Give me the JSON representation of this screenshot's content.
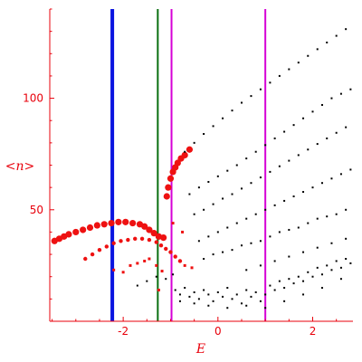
{
  "colors": {
    "axis": "#e8000b",
    "background": "#ffffff",
    "black_points": "#000000",
    "red_points": "#ee1111"
  },
  "chart_data": {
    "type": "scatter",
    "title": "",
    "xlabel": "E",
    "ylabel": "<n>",
    "xlim": [
      -3.55,
      2.85
    ],
    "ylim": [
      0,
      140
    ],
    "xticks": [
      -2,
      0,
      2
    ],
    "yticks": [
      50,
      100
    ],
    "xtick_labels": [
      "-2",
      "0",
      "2"
    ],
    "ytick_labels": [
      "50",
      "100"
    ],
    "grid": false,
    "vertical_lines": [
      {
        "x": -2.23,
        "color": "#0a14e0"
      },
      {
        "x": -1.27,
        "color": "#0a6f10"
      },
      {
        "x": -0.98,
        "color": "#d600d6"
      },
      {
        "x": 1.0,
        "color": "#d600d6"
      }
    ],
    "series": [
      {
        "color": "#ee1111",
        "marker": "circle-large",
        "note": "upper red arc",
        "points": [
          [
            -3.45,
            36
          ],
          [
            -3.35,
            37
          ],
          [
            -3.25,
            38
          ],
          [
            -3.15,
            39
          ],
          [
            -3.0,
            40
          ],
          [
            -2.85,
            41
          ],
          [
            -2.7,
            42
          ],
          [
            -2.55,
            43
          ],
          [
            -2.4,
            43.5
          ],
          [
            -2.25,
            44
          ],
          [
            -2.1,
            44.5
          ],
          [
            -1.95,
            44.5
          ],
          [
            -1.8,
            44
          ],
          [
            -1.65,
            43.5
          ],
          [
            -1.55,
            42.5
          ],
          [
            -1.45,
            41
          ],
          [
            -1.35,
            39.5
          ],
          [
            -1.25,
            38
          ],
          [
            -1.15,
            37.5
          ]
        ]
      },
      {
        "color": "#ee1111",
        "marker": "circle-medium",
        "note": "lower red arc",
        "points": [
          [
            -2.8,
            28
          ],
          [
            -2.65,
            30
          ],
          [
            -2.5,
            32
          ],
          [
            -2.35,
            33.5
          ],
          [
            -2.2,
            35
          ],
          [
            -2.05,
            36
          ],
          [
            -1.9,
            36.5
          ],
          [
            -1.75,
            37
          ],
          [
            -1.6,
            37
          ],
          [
            -1.45,
            36.5
          ],
          [
            -1.3,
            35.5
          ],
          [
            -1.2,
            34
          ],
          [
            -1.1,
            32.5
          ],
          [
            -1.0,
            31
          ],
          [
            -0.9,
            29
          ],
          [
            -0.8,
            27
          ]
        ]
      },
      {
        "color": "#ee1111",
        "marker": "circle-large",
        "note": "red rising branch",
        "points": [
          [
            -1.08,
            56
          ],
          [
            -1.05,
            60
          ],
          [
            -1.0,
            64
          ],
          [
            -0.95,
            67
          ],
          [
            -0.9,
            69
          ],
          [
            -0.85,
            71
          ],
          [
            -0.78,
            73
          ],
          [
            -0.7,
            74.5
          ],
          [
            -0.6,
            77
          ]
        ]
      },
      {
        "color": "#ee1111",
        "marker": "square-small",
        "note": "scattered red points",
        "points": [
          [
            -2.2,
            23
          ],
          [
            -2.0,
            22
          ],
          [
            -1.85,
            25
          ],
          [
            -1.7,
            26
          ],
          [
            -1.55,
            27
          ],
          [
            -1.45,
            28
          ],
          [
            -1.3,
            25
          ],
          [
            -1.18,
            22.5
          ],
          [
            -1.25,
            14
          ],
          [
            -0.75,
            40
          ],
          [
            -0.95,
            44
          ],
          [
            -0.7,
            25
          ],
          [
            -0.55,
            24
          ]
        ]
      },
      {
        "color": "#000000",
        "marker": "dot",
        "note": "black level lines",
        "points": [
          [
            -0.7,
            76
          ],
          [
            -0.5,
            80
          ],
          [
            -0.3,
            84
          ],
          [
            -0.1,
            87.5
          ],
          [
            0.1,
            91
          ],
          [
            0.3,
            94.5
          ],
          [
            0.5,
            98
          ],
          [
            0.7,
            101
          ],
          [
            0.9,
            104
          ],
          [
            1.1,
            107
          ],
          [
            1.3,
            110
          ],
          [
            1.5,
            113
          ],
          [
            1.7,
            116
          ],
          [
            1.9,
            119
          ],
          [
            2.1,
            122
          ],
          [
            2.3,
            125
          ],
          [
            2.5,
            128
          ],
          [
            2.7,
            131
          ],
          [
            -0.6,
            57
          ],
          [
            -0.4,
            60
          ],
          [
            -0.2,
            62.5
          ],
          [
            0.0,
            65
          ],
          [
            0.2,
            67.5
          ],
          [
            0.4,
            70
          ],
          [
            0.6,
            73
          ],
          [
            0.8,
            76
          ],
          [
            1.0,
            79
          ],
          [
            1.2,
            82
          ],
          [
            1.4,
            85
          ],
          [
            1.6,
            88
          ],
          [
            1.8,
            91
          ],
          [
            2.0,
            94
          ],
          [
            2.2,
            97
          ],
          [
            2.4,
            100
          ],
          [
            2.6,
            102
          ],
          [
            2.8,
            104
          ],
          [
            -0.5,
            48
          ],
          [
            -0.3,
            50
          ],
          [
            -0.1,
            52.5
          ],
          [
            0.1,
            55
          ],
          [
            0.3,
            57
          ],
          [
            0.5,
            59.5
          ],
          [
            0.7,
            62
          ],
          [
            0.9,
            64.5
          ],
          [
            1.1,
            67
          ],
          [
            1.3,
            69.5
          ],
          [
            1.5,
            72
          ],
          [
            1.7,
            74.5
          ],
          [
            1.9,
            77
          ],
          [
            2.1,
            79.5
          ],
          [
            2.3,
            82
          ],
          [
            2.5,
            84.5
          ],
          [
            2.7,
            87
          ],
          [
            -0.4,
            36
          ],
          [
            -0.2,
            38
          ],
          [
            0.0,
            40
          ],
          [
            0.2,
            42
          ],
          [
            0.4,
            44
          ],
          [
            0.6,
            46
          ],
          [
            0.8,
            48
          ],
          [
            1.0,
            50
          ],
          [
            1.2,
            52
          ],
          [
            1.4,
            54
          ],
          [
            1.6,
            56
          ],
          [
            1.8,
            58
          ],
          [
            2.0,
            60
          ],
          [
            2.2,
            62
          ],
          [
            2.4,
            64
          ],
          [
            2.6,
            66
          ],
          [
            2.8,
            68
          ],
          [
            -0.3,
            28
          ],
          [
            -0.1,
            30
          ],
          [
            0.1,
            31
          ],
          [
            0.3,
            32
          ],
          [
            0.5,
            34
          ],
          [
            0.7,
            35
          ],
          [
            0.9,
            36
          ],
          [
            1.1,
            38
          ],
          [
            1.3,
            40
          ],
          [
            1.5,
            41
          ],
          [
            1.7,
            42
          ],
          [
            1.9,
            44
          ],
          [
            2.1,
            46
          ],
          [
            2.3,
            47
          ],
          [
            2.5,
            48
          ],
          [
            2.7,
            50
          ],
          [
            0.6,
            23
          ],
          [
            0.9,
            25
          ],
          [
            1.2,
            27
          ],
          [
            1.5,
            29
          ],
          [
            1.8,
            31
          ],
          [
            2.1,
            33
          ],
          [
            2.4,
            35
          ],
          [
            2.7,
            37
          ],
          [
            -0.9,
            14
          ],
          [
            -0.8,
            12
          ],
          [
            -0.7,
            15
          ],
          [
            -0.6,
            11
          ],
          [
            -0.5,
            13
          ],
          [
            -0.4,
            10
          ],
          [
            -0.3,
            14
          ],
          [
            -0.2,
            12
          ],
          [
            -0.1,
            9
          ],
          [
            0.0,
            13
          ],
          [
            0.1,
            11
          ],
          [
            0.2,
            15
          ],
          [
            0.3,
            10
          ],
          [
            0.4,
            12
          ],
          [
            0.5,
            8
          ],
          [
            0.6,
            14
          ],
          [
            0.7,
            11
          ],
          [
            0.8,
            13
          ],
          [
            0.9,
            9
          ],
          [
            1.0,
            12
          ],
          [
            1.1,
            16
          ],
          [
            1.2,
            14
          ],
          [
            1.3,
            18
          ],
          [
            1.4,
            15
          ],
          [
            1.5,
            19
          ],
          [
            1.6,
            17
          ],
          [
            1.7,
            20
          ],
          [
            1.8,
            18
          ],
          [
            1.9,
            22
          ],
          [
            2.0,
            20
          ],
          [
            2.1,
            24
          ],
          [
            2.2,
            21
          ],
          [
            2.3,
            25
          ],
          [
            2.4,
            23
          ],
          [
            2.5,
            27
          ],
          [
            2.6,
            24
          ],
          [
            2.7,
            28
          ],
          [
            2.8,
            26
          ],
          [
            -0.8,
            9
          ],
          [
            -0.5,
            8
          ],
          [
            -0.2,
            7
          ],
          [
            0.2,
            6
          ],
          [
            0.6,
            7
          ],
          [
            1.0,
            6
          ],
          [
            1.4,
            9
          ],
          [
            1.8,
            12
          ],
          [
            2.2,
            15
          ],
          [
            2.6,
            19
          ],
          [
            -1.7,
            16
          ],
          [
            -1.5,
            18
          ],
          [
            -1.3,
            20
          ],
          [
            -1.1,
            19
          ],
          [
            -0.95,
            21
          ]
        ]
      }
    ]
  }
}
